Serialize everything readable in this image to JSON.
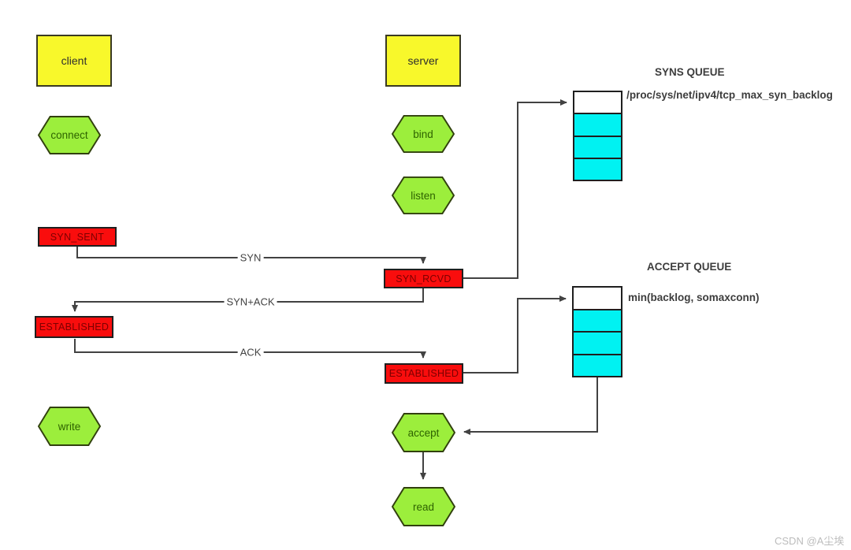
{
  "nodes": {
    "client": "client",
    "server": "server",
    "connect": "connect",
    "bind": "bind",
    "listen": "listen",
    "syn_sent": "SYN_SENT",
    "syn_rcvd": "SYN_RCVD",
    "established_client": "ESTABLISHED",
    "established_server": "ESTABLISHED",
    "write": "write",
    "accept": "accept",
    "read": "read"
  },
  "messages": {
    "syn": "SYN",
    "syn_ack": "SYN+ACK",
    "ack": "ACK"
  },
  "syns_queue": {
    "title": "SYNS QUEUE",
    "label": "/proc/sys/net/ipv4/tcp_max_syn_backlog",
    "cells": [
      "empty",
      "filled",
      "filled",
      "filled"
    ]
  },
  "accept_queue": {
    "title": "ACCEPT QUEUE",
    "label": "min(backlog, somaxconn)",
    "cells": [
      "empty",
      "filled",
      "filled",
      "filled"
    ]
  },
  "watermark": "CSDN @A尘埃",
  "colors": {
    "process_fill": "#f8f82b",
    "state_fill": "#f90d0d",
    "call_fill": "#9cee3c",
    "call_stroke": "#31400e",
    "queue_cell_fill": "#00f2f2",
    "line": "#424242"
  }
}
